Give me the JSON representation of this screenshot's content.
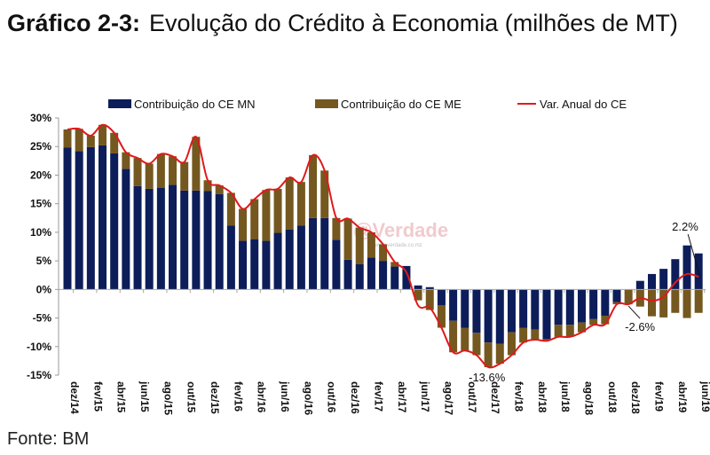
{
  "title": {
    "label": "Gráfico 2-3:",
    "text": "Evolução do Crédito à Economia (milhões de MT)"
  },
  "source": "Fonte: BM",
  "watermark": {
    "text": "@Verdade",
    "url_text": "www.verdade.co.mz"
  },
  "colors": {
    "mn": "#0c1d5a",
    "me": "#75581f",
    "line": "#e0191b"
  },
  "chart_data": {
    "type": "bar",
    "stacked": true,
    "ylim": [
      -15,
      30
    ],
    "yticks": [
      30,
      25,
      20,
      15,
      10,
      5,
      0,
      -5,
      -10,
      -15
    ],
    "ytick_labels": [
      "30%",
      "25%",
      "20%",
      "15%",
      "10%",
      "5%",
      "0%",
      "-5%",
      "-10%",
      "-15%"
    ],
    "legend_position": "top",
    "categories": [
      "dez/14",
      "jan/15",
      "fev/15",
      "mar/15",
      "abr/15",
      "mai/15",
      "jun/15",
      "jul/15",
      "ago/15",
      "set/15",
      "out/15",
      "nov/15",
      "dez/15",
      "jan/16",
      "fev/16",
      "mar/16",
      "abr/16",
      "mai/16",
      "jun/16",
      "jul/16",
      "ago/16",
      "set/16",
      "out/16",
      "nov/16",
      "dez/16",
      "jan/17",
      "fev/17",
      "mar/17",
      "abr/17",
      "mai/17",
      "jun/17",
      "jul/17",
      "ago/17",
      "set/17",
      "out/17",
      "nov/17",
      "dez/17",
      "jan/18",
      "fev/18",
      "mar/18",
      "abr/18",
      "mai/18",
      "jun/18",
      "jul/18",
      "ago/18",
      "set/18",
      "out/18",
      "nov/18",
      "dez/18",
      "jan/19",
      "fev/19",
      "mar/19",
      "abr/19",
      "mai/19",
      "jun/19"
    ],
    "xtick_labels": [
      "dez/14",
      "fev/15",
      "abr/15",
      "jun/15",
      "ago/15",
      "out/15",
      "dez/15",
      "fev/16",
      "abr/16",
      "jun/16",
      "ago/16",
      "out/16",
      "dez/16",
      "fev/17",
      "abr/17",
      "jun/17",
      "ago/17",
      "out/17",
      "dez/17",
      "fev/18",
      "abr/18",
      "jun/18",
      "ago/18",
      "out/18",
      "dez/18",
      "fev/19",
      "abr/19",
      "jun/19"
    ],
    "series": [
      {
        "name": "Contribuição do CE MN",
        "type": "bar",
        "values": [
          24.8,
          24.2,
          24.9,
          25.2,
          23.8,
          21.1,
          18.1,
          17.6,
          17.8,
          18.3,
          17.3,
          17.3,
          17.2,
          16.7,
          11.2,
          8.5,
          8.8,
          8.5,
          9.9,
          10.5,
          11.2,
          12.5,
          12.5,
          8.7,
          5.2,
          4.4,
          5.6,
          5.0,
          4.0,
          4.1,
          0.7,
          0.4,
          -2.8,
          -5.5,
          -6.7,
          -7.6,
          -9.3,
          -9.5,
          -7.5,
          -6.7,
          -7.0,
          -8.7,
          -6.2,
          -6.2,
          -5.8,
          -5.2,
          -4.6,
          -2.2,
          0.0,
          1.5,
          2.7,
          3.6,
          5.3,
          7.7,
          6.3
        ]
      },
      {
        "name": "Contribuição do CE ME",
        "type": "bar",
        "values": [
          3.2,
          3.9,
          2.0,
          3.6,
          3.6,
          2.9,
          4.9,
          4.4,
          5.9,
          5.0,
          5.0,
          9.4,
          1.9,
          1.5,
          5.7,
          5.6,
          7.0,
          8.9,
          7.7,
          9.1,
          7.6,
          11.0,
          8.3,
          3.8,
          7.2,
          6.4,
          4.4,
          2.9,
          0.8,
          0.0,
          -1.9,
          -3.6,
          -3.9,
          -5.5,
          -4.0,
          -3.9,
          -4.3,
          -3.5,
          -4.0,
          -2.6,
          -1.8,
          -0.3,
          -2.1,
          -2.1,
          -1.7,
          -1.0,
          -1.5,
          -0.4,
          -2.6,
          -3.0,
          -4.7,
          -4.9,
          -4.1,
          -5.0,
          -4.1
        ]
      },
      {
        "name": "Var. Anual do CE",
        "type": "line",
        "values": [
          28.0,
          28.1,
          26.9,
          28.8,
          27.4,
          24.0,
          23.0,
          22.0,
          23.7,
          23.3,
          22.3,
          26.7,
          19.1,
          18.2,
          16.9,
          14.1,
          15.8,
          17.4,
          17.6,
          19.6,
          18.8,
          23.5,
          20.8,
          12.5,
          12.4,
          10.8,
          10.0,
          7.9,
          4.8,
          3.0,
          -2.8,
          -3.2,
          -6.7,
          -11.0,
          -10.7,
          -11.5,
          -13.6,
          -13.0,
          -11.5,
          -9.3,
          -8.8,
          -9.0,
          -8.3,
          -8.3,
          -7.5,
          -6.2,
          -6.1,
          -2.6,
          -2.6,
          -1.5,
          -2.0,
          -1.3,
          1.2,
          2.7,
          2.2
        ]
      }
    ],
    "annotations": [
      {
        "category": "dez/17",
        "text": "-13.6%"
      },
      {
        "category": "dez/18",
        "text": "-2.6%"
      },
      {
        "category": "jun/19",
        "text": "2.2%"
      }
    ]
  }
}
